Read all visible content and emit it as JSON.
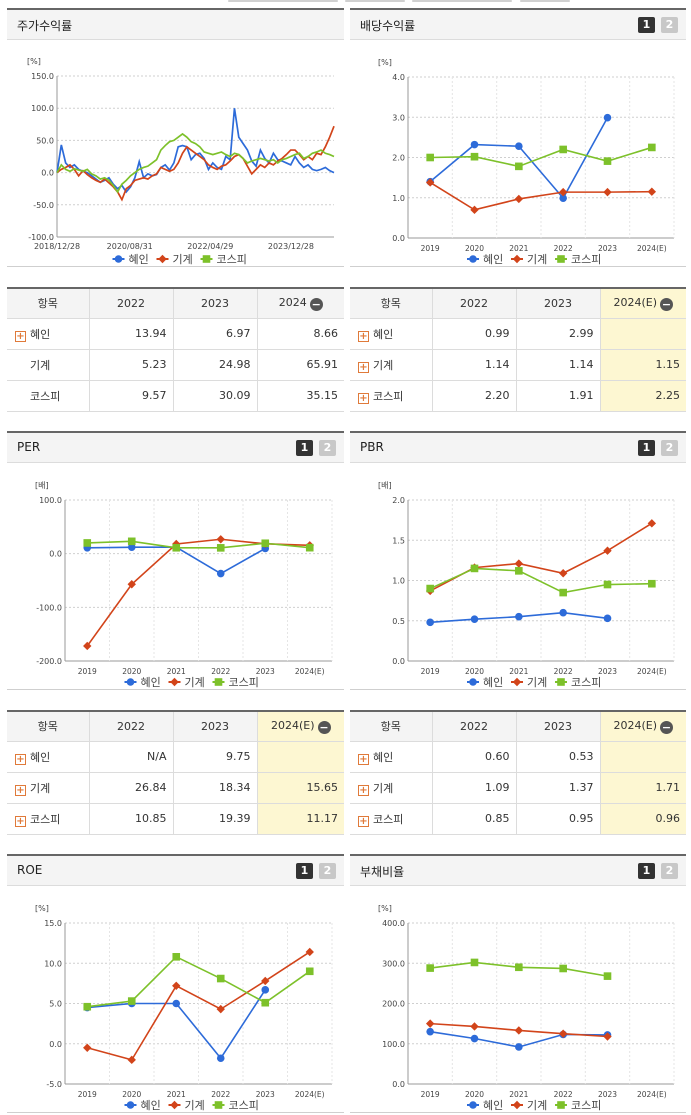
{
  "top_corner": "(%)",
  "series_colors": {
    "heyin": "#2d6bd9",
    "gige": "#d2441a",
    "kospi": "#7dc12a"
  },
  "legend": [
    "혜인",
    "기계",
    "코스피"
  ],
  "charts": {
    "stock_return": {
      "title": "주가수익률",
      "unit": "[%]",
      "ylim": [
        -100,
        150
      ],
      "yticks": [
        "150.0",
        "100.0",
        "50.0",
        "0.0",
        "-50.0",
        "-100.0"
      ],
      "xticks": [
        "2018/12/28",
        "2020/08/31",
        "2022/04/29",
        "2023/12/28"
      ],
      "chart_data": {
        "type": "line",
        "x_domain": [
          "2018/12/28",
          "2024/06/30"
        ],
        "x_ticks": [
          "2018/12/28",
          "2020/08/31",
          "2022/04/29",
          "2023/12/28"
        ],
        "ylim": [
          -100,
          150
        ],
        "series": [
          {
            "name": "혜인",
            "key": "heyin",
            "values": [
              0,
              43,
              15,
              8,
              12,
              5,
              2,
              0,
              -5,
              -10,
              -15,
              -12,
              -8,
              -18,
              -25,
              -20,
              -30,
              -22,
              -8,
              17,
              -8,
              -2,
              -5,
              -3,
              8,
              12,
              4,
              15,
              40,
              42,
              40,
              20,
              28,
              30,
              22,
              5,
              15,
              8,
              5,
              25,
              20,
              100,
              55,
              45,
              35,
              18,
              10,
              35,
              22,
              15,
              30,
              20,
              18,
              15,
              12,
              25,
              15,
              8,
              12,
              5,
              3,
              5,
              8,
              3,
              0
            ]
          },
          {
            "name": "기계",
            "key": "gige",
            "values": [
              0,
              5,
              8,
              12,
              5,
              -5,
              3,
              -3,
              -8,
              -12,
              -15,
              -10,
              -16,
              -22,
              -30,
              -42,
              -25,
              -20,
              -12,
              -10,
              -8,
              -10,
              -5,
              -2,
              8,
              5,
              2,
              5,
              15,
              30,
              40,
              35,
              30,
              25,
              20,
              12,
              8,
              5,
              10,
              12,
              18,
              25,
              28,
              22,
              10,
              -2,
              5,
              12,
              8,
              15,
              12,
              18,
              22,
              28,
              35,
              35,
              28,
              20,
              25,
              20,
              30,
              28,
              40,
              55,
              72
            ]
          },
          {
            "name": "코스피",
            "key": "kospi",
            "values": [
              0,
              12,
              5,
              2,
              6,
              4,
              2,
              5,
              -2,
              -5,
              -10,
              -8,
              -12,
              -20,
              -30,
              -18,
              -12,
              -5,
              0,
              5,
              8,
              10,
              15,
              20,
              35,
              42,
              48,
              50,
              55,
              60,
              55,
              48,
              45,
              40,
              32,
              30,
              28,
              30,
              32,
              28,
              25,
              30,
              28,
              22,
              15,
              18,
              20,
              22,
              20,
              18,
              20,
              15,
              20,
              22,
              25,
              28,
              30,
              22,
              25,
              30,
              32,
              35,
              30,
              28,
              25
            ]
          }
        ]
      }
    },
    "dividend": {
      "title": "배당수익률",
      "btn1": "1",
      "btn2": "2",
      "unit": "[%]",
      "ylim": [
        0,
        4
      ],
      "yticks": [
        "4.0",
        "3.0",
        "2.0",
        "1.0",
        "0.0"
      ],
      "categories": [
        "2019",
        "2020",
        "2021",
        "2022",
        "2023",
        "2024(E)"
      ],
      "chart_data": {
        "type": "line",
        "categories": [
          "2019",
          "2020",
          "2021",
          "2022",
          "2023",
          "2024(E)"
        ],
        "ylim": [
          0,
          4
        ],
        "series": [
          {
            "name": "혜인",
            "key": "heyin",
            "values": [
              1.4,
              2.32,
              2.28,
              0.99,
              2.99,
              null
            ]
          },
          {
            "name": "기계",
            "key": "gige",
            "values": [
              1.38,
              0.7,
              0.97,
              1.14,
              1.14,
              1.15
            ]
          },
          {
            "name": "코스피",
            "key": "kospi",
            "values": [
              2.0,
              2.02,
              1.78,
              2.2,
              1.91,
              2.25
            ]
          }
        ]
      }
    },
    "per": {
      "title": "PER",
      "btn1": "1",
      "btn2": "2",
      "unit": "[배]",
      "ylim": [
        -200,
        100
      ],
      "yticks": [
        "100.0",
        "0.0",
        "-100.0",
        "-200.0"
      ],
      "categories": [
        "2019",
        "2020",
        "2021",
        "2022",
        "2023",
        "2024(E)"
      ],
      "chart_data": {
        "type": "line",
        "categories": [
          "2019",
          "2020",
          "2021",
          "2022",
          "2023",
          "2024(E)"
        ],
        "ylim": [
          -200,
          100
        ],
        "series": [
          {
            "name": "혜인",
            "key": "heyin",
            "values": [
              11,
              12,
              12,
              -37,
              9.75,
              null
            ]
          },
          {
            "name": "기계",
            "key": "gige",
            "values": [
              -172,
              -57,
              18,
              26.84,
              18.34,
              15.65
            ]
          },
          {
            "name": "코스피",
            "key": "kospi",
            "values": [
              20,
              23,
              11,
              10.85,
              19.39,
              11.17
            ]
          }
        ]
      }
    },
    "pbr": {
      "title": "PBR",
      "btn1": "1",
      "btn2": "2",
      "unit": "[배]",
      "ylim": [
        0,
        2
      ],
      "yticks": [
        "2.0",
        "1.5",
        "1.0",
        "0.5",
        "0.0"
      ],
      "categories": [
        "2019",
        "2020",
        "2021",
        "2022",
        "2023",
        "2024(E)"
      ],
      "chart_data": {
        "type": "line",
        "categories": [
          "2019",
          "2020",
          "2021",
          "2022",
          "2023",
          "2024(E)"
        ],
        "ylim": [
          0,
          2
        ],
        "series": [
          {
            "name": "혜인",
            "key": "heyin",
            "values": [
              0.48,
              0.52,
              0.55,
              0.6,
              0.53,
              null
            ]
          },
          {
            "name": "기계",
            "key": "gige",
            "values": [
              0.87,
              1.16,
              1.21,
              1.09,
              1.37,
              1.71
            ]
          },
          {
            "name": "코스피",
            "key": "kospi",
            "values": [
              0.9,
              1.15,
              1.12,
              0.85,
              0.95,
              0.96
            ]
          }
        ]
      }
    },
    "roe": {
      "title": "ROE",
      "btn1": "1",
      "btn2": "2",
      "unit": "[%]",
      "ylim": [
        -5,
        15
      ],
      "yticks": [
        "15.0",
        "10.0",
        "5.0",
        "0.0",
        "-5.0"
      ],
      "categories": [
        "2019",
        "2020",
        "2021",
        "2022",
        "2023",
        "2024(E)"
      ],
      "chart_data": {
        "type": "line",
        "categories": [
          "2019",
          "2020",
          "2021",
          "2022",
          "2023",
          "2024(E)"
        ],
        "ylim": [
          -5,
          15
        ],
        "series": [
          {
            "name": "혜인",
            "key": "heyin",
            "values": [
              4.5,
              5.0,
              5.0,
              -1.8,
              6.7,
              null
            ]
          },
          {
            "name": "기계",
            "key": "gige",
            "values": [
              -0.5,
              -2.0,
              7.2,
              4.3,
              7.8,
              11.4
            ]
          },
          {
            "name": "코스피",
            "key": "kospi",
            "values": [
              4.6,
              5.3,
              10.8,
              8.1,
              5.1,
              9.0
            ]
          }
        ]
      }
    },
    "debt": {
      "title": "부채비율",
      "btn1": "1",
      "btn2": "2",
      "unit": "[%]",
      "ylim": [
        0,
        400
      ],
      "yticks": [
        "400.0",
        "300.0",
        "200.0",
        "100.0",
        "0.0"
      ],
      "categories": [
        "2019",
        "2020",
        "2021",
        "2022",
        "2023",
        "2024(E)"
      ],
      "chart_data": {
        "type": "line",
        "categories": [
          "2019",
          "2020",
          "2021",
          "2022",
          "2023",
          "2024(E)"
        ],
        "ylim": [
          0,
          400
        ],
        "series": [
          {
            "name": "혜인",
            "key": "heyin",
            "values": [
              130,
              113,
              92,
              123,
              122,
              null
            ]
          },
          {
            "name": "기계",
            "key": "gige",
            "values": [
              150,
              143,
              133,
              125,
              118,
              null
            ]
          },
          {
            "name": "코스피",
            "key": "kospi",
            "values": [
              288,
              302,
              290,
              287,
              268,
              null
            ]
          }
        ]
      }
    }
  },
  "tables": {
    "stock_return": {
      "headers": [
        "항목",
        "2022",
        "2023",
        "2024"
      ],
      "rows": [
        {
          "label": "혜인",
          "expand": true,
          "v": [
            "13.94",
            "6.97",
            "8.66"
          ]
        },
        {
          "label": "기계",
          "expand": false,
          "v": [
            "5.23",
            "24.98",
            "65.91"
          ]
        },
        {
          "label": "코스피",
          "expand": false,
          "v": [
            "9.57",
            "30.09",
            "35.15"
          ]
        }
      ]
    },
    "dividend": {
      "headers": [
        "항목",
        "2022",
        "2023",
        "2024(E)"
      ],
      "rows": [
        {
          "label": "혜인",
          "expand": true,
          "v": [
            "0.99",
            "2.99",
            ""
          ]
        },
        {
          "label": "기계",
          "expand": true,
          "v": [
            "1.14",
            "1.14",
            "1.15"
          ]
        },
        {
          "label": "코스피",
          "expand": true,
          "v": [
            "2.20",
            "1.91",
            "2.25"
          ]
        }
      ]
    },
    "per": {
      "headers": [
        "항목",
        "2022",
        "2023",
        "2024(E)"
      ],
      "rows": [
        {
          "label": "혜인",
          "expand": true,
          "v": [
            "N/A",
            "9.75",
            ""
          ]
        },
        {
          "label": "기계",
          "expand": true,
          "v": [
            "26.84",
            "18.34",
            "15.65"
          ]
        },
        {
          "label": "코스피",
          "expand": true,
          "v": [
            "10.85",
            "19.39",
            "11.17"
          ]
        }
      ]
    },
    "pbr": {
      "headers": [
        "항목",
        "2022",
        "2023",
        "2024(E)"
      ],
      "rows": [
        {
          "label": "혜인",
          "expand": true,
          "v": [
            "0.60",
            "0.53",
            ""
          ]
        },
        {
          "label": "기계",
          "expand": true,
          "v": [
            "1.09",
            "1.37",
            "1.71"
          ]
        },
        {
          "label": "코스피",
          "expand": true,
          "v": [
            "0.85",
            "0.95",
            "0.96"
          ]
        }
      ]
    }
  }
}
